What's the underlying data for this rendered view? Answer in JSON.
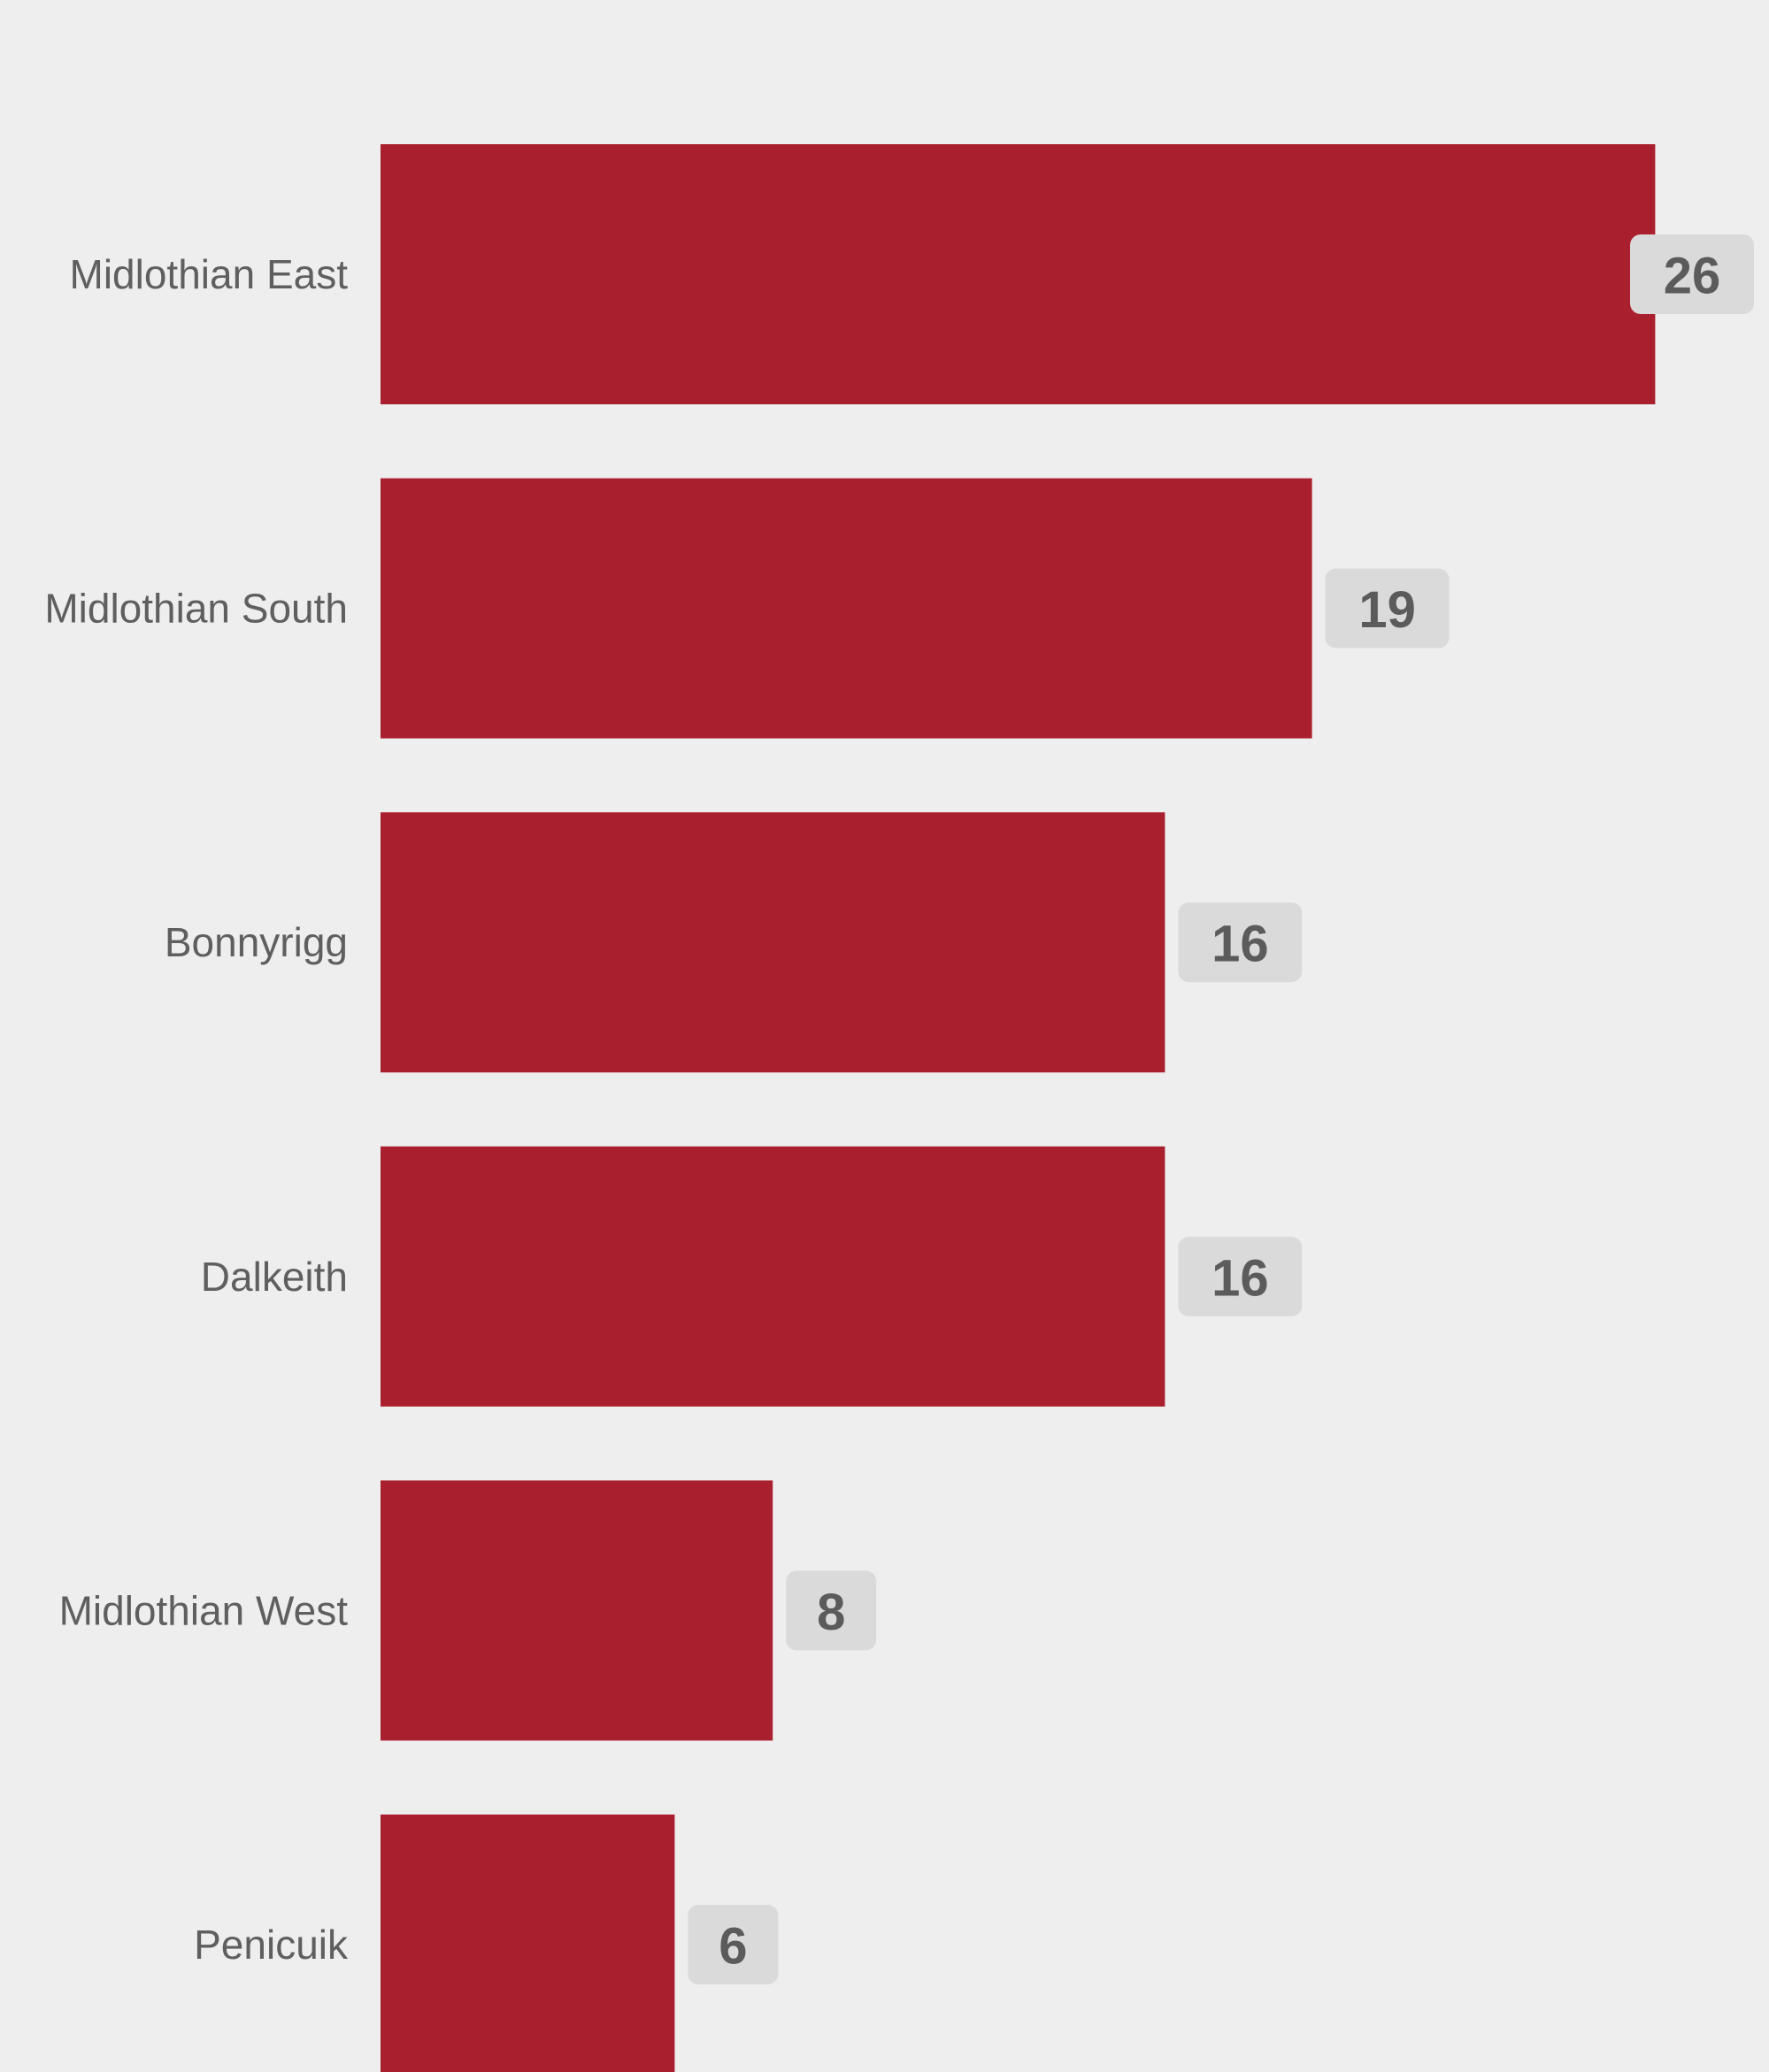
{
  "chart_data": {
    "type": "bar",
    "orientation": "horizontal",
    "categories": [
      "Midlothian East",
      "Midlothian South",
      "Bonnyrigg",
      "Dalkeith",
      "Midlothian West",
      "Penicuik"
    ],
    "values": [
      26,
      19,
      16,
      16,
      8,
      6
    ],
    "title": "",
    "xlabel": "",
    "ylabel": "",
    "grid": false,
    "legend": "none",
    "data_labels": true,
    "colors": {
      "background": "#efeeee",
      "bar": "#aa1f2e",
      "label_badge": "#dadada",
      "label_text": "#5b5b5b",
      "category_text": "#5f5f5f"
    }
  }
}
